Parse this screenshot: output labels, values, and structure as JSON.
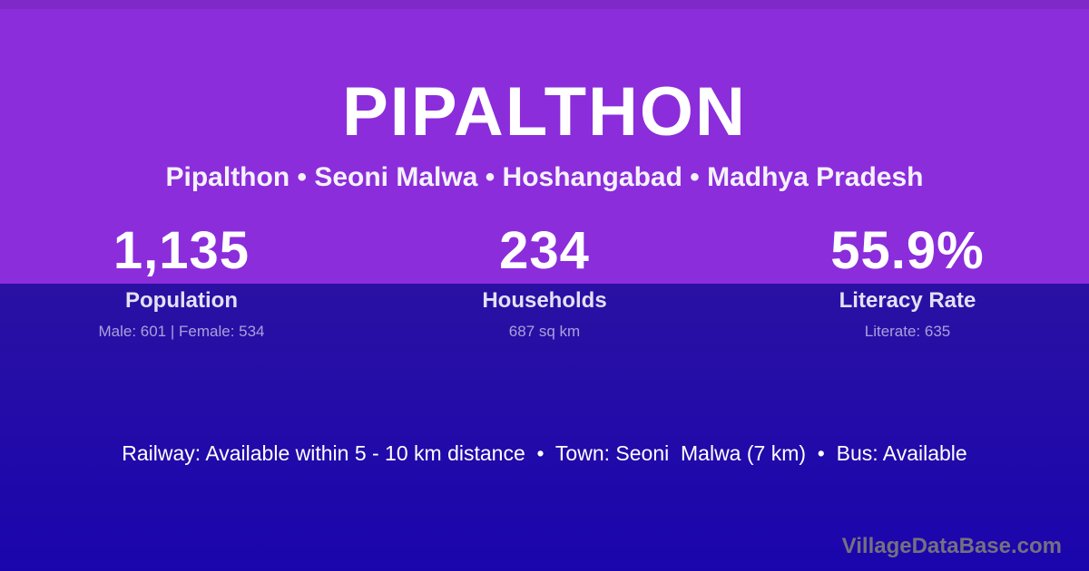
{
  "colors": {
    "top_background": "#8b2ddb",
    "bottom_background_top": "#2a11a3",
    "bottom_background_bottom": "#1a05ad",
    "text_primary": "#ffffff",
    "label_text": "rgba(255,255,255,0.87)",
    "detail_text": "rgba(255,255,255,0.60)",
    "watermark_text": "#74717f"
  },
  "header": {
    "title": "PIPALTHON",
    "subtitle": "Pipalthon • Seoni Malwa • Hoshangabad • Madhya Pradesh"
  },
  "stats": [
    {
      "value": "1,135",
      "label": "Population",
      "detail": "Male: 601 | Female: 534"
    },
    {
      "value": "234",
      "label": "Households",
      "detail": "687 sq km"
    },
    {
      "value": "55.9%",
      "label": "Literacy Rate",
      "detail": "Literate: 635"
    }
  ],
  "footer": {
    "info_line": "Railway: Available within 5 - 10 km distance  •  Town: Seoni  Malwa (7 km)  •  Bus: Available",
    "watermark": "VillageDataBase.com"
  }
}
